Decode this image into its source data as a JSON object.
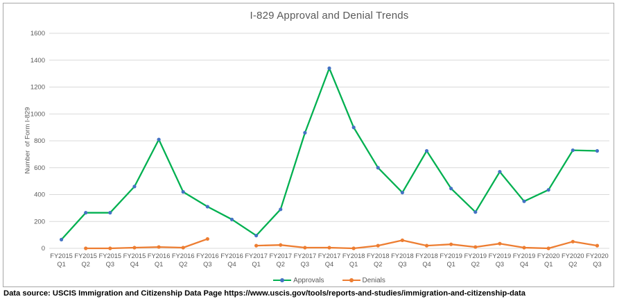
{
  "chart_data": {
    "type": "line",
    "title": "I-829 Approval and Denial Trends",
    "xlabel": "",
    "ylabel": "Number  of Form I-829",
    "ylim": [
      0,
      1600
    ],
    "yticks": [
      0,
      200,
      400,
      600,
      800,
      1000,
      1200,
      1400,
      1600
    ],
    "grid": true,
    "legend_position": "bottom",
    "categories": [
      "FY2015 Q1",
      "FY2015 Q2",
      "FY2015 Q3",
      "FY2015 Q4",
      "FY2016 Q1",
      "FY2016 Q2",
      "FY2016 Q3",
      "FY2016 Q4",
      "FY2017 Q1",
      "FY2017 Q2",
      "FY2017 Q3",
      "FY2017 Q4",
      "FY2018 Q1",
      "FY2018 Q2",
      "FY2018 Q3",
      "FY2018 Q4",
      "FY2019 Q1",
      "FY2019 Q2",
      "FY2019 Q3",
      "FY2019 Q4",
      "FY2020 Q1",
      "FY2020 Q2",
      "FY2020 Q3"
    ],
    "series": [
      {
        "name": "Approvals",
        "line_color": "#00B050",
        "marker_color": "#4472C4",
        "values": [
          65,
          265,
          265,
          460,
          810,
          420,
          310,
          215,
          95,
          290,
          860,
          1340,
          900,
          600,
          415,
          725,
          445,
          270,
          570,
          350,
          435,
          730,
          725
        ]
      },
      {
        "name": "Denials",
        "line_color": "#ED7D31",
        "marker_color": "#ED7D31",
        "values": [
          null,
          0,
          0,
          5,
          10,
          5,
          70,
          null,
          20,
          25,
          5,
          5,
          0,
          20,
          60,
          20,
          30,
          10,
          35,
          5,
          0,
          50,
          20
        ]
      }
    ],
    "colors": {
      "grid": "#D9D9D9",
      "axis_text": "#595959",
      "title_text": "#595959",
      "frame_border": "#A6A6A6",
      "footer_text": "#000000",
      "background": "#FFFFFF"
    }
  },
  "footer": {
    "text": "Data source: USCIS Immigration and Citizenship Data Page https://www.uscis.gov/tools/reports-and-studies/immigration-and-citizenship-data"
  }
}
